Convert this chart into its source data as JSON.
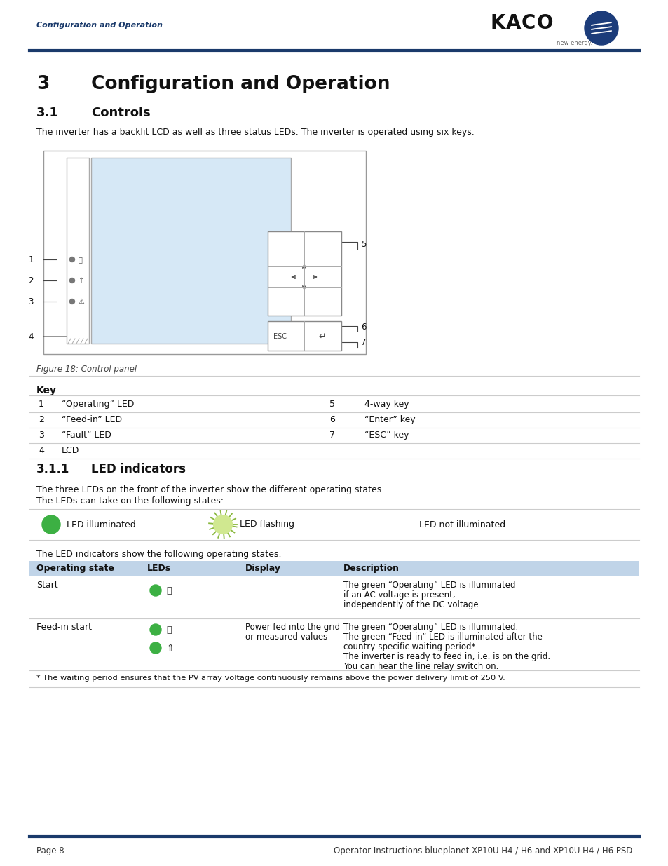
{
  "page_width": 9.54,
  "page_height": 12.35,
  "bg_color": "#ffffff",
  "header_text": "Configuration and Operation",
  "header_color": "#1a3a6b",
  "dark_line_color": "#1a3a6b",
  "kaco_text": "KACO",
  "new_energy_text": "new energy.",
  "section3_title": "Configuration and Operation",
  "section31_title": "Controls",
  "controls_body": "The inverter has a backlit LCD as well as three status LEDs. The inverter is operated using six keys.",
  "figure_caption": "Figure 18: Control panel",
  "key_header": "Key",
  "key_table": [
    [
      "1",
      "“Operating” LED",
      "5",
      "4-way key"
    ],
    [
      "2",
      "“Feed-in” LED",
      "6",
      "“Enter” key"
    ],
    [
      "3",
      "“Fault” LED",
      "7",
      "“ESC” key"
    ],
    [
      "4",
      "LCD",
      "",
      ""
    ]
  ],
  "section311_title": "LED indicators",
  "led_body1": "The three LEDs on the front of the inverter show the different operating states.",
  "led_body2": "The LEDs can take on the following states:",
  "led_table_intro": "The LED indicators show the following operating states:",
  "led_table_header": [
    "Operating state",
    "LEDs",
    "Display",
    "Description"
  ],
  "led_table_header_bg": "#c0d4e8",
  "led_rows": [
    {
      "state": "Start",
      "description": [
        "The green “Operating” LED is illuminated",
        "if an AC voltage is present,",
        "independently of the DC voltage."
      ]
    },
    {
      "state": "Feed-in start",
      "display": [
        "Power fed into the grid",
        "or measured values"
      ],
      "description": [
        "The green “Operating” LED is illuminated.",
        "The green “Feed-in” LED is illuminated after the",
        "country-specific waiting period*.",
        "The inverter is ready to feed in, i.e. is on the grid.",
        "You can hear the line relay switch on."
      ]
    }
  ],
  "footnote": "* The waiting period ensures that the PV array voltage continuously remains above the power delivery limit of 250 V.",
  "footer_left": "Page 8",
  "footer_right": "Operator Instructions blueplanet XP10U H4 / H6 and XP10U H4 / H6 PSD",
  "green_led_color": "#3cb043",
  "line_color": "#cccccc"
}
